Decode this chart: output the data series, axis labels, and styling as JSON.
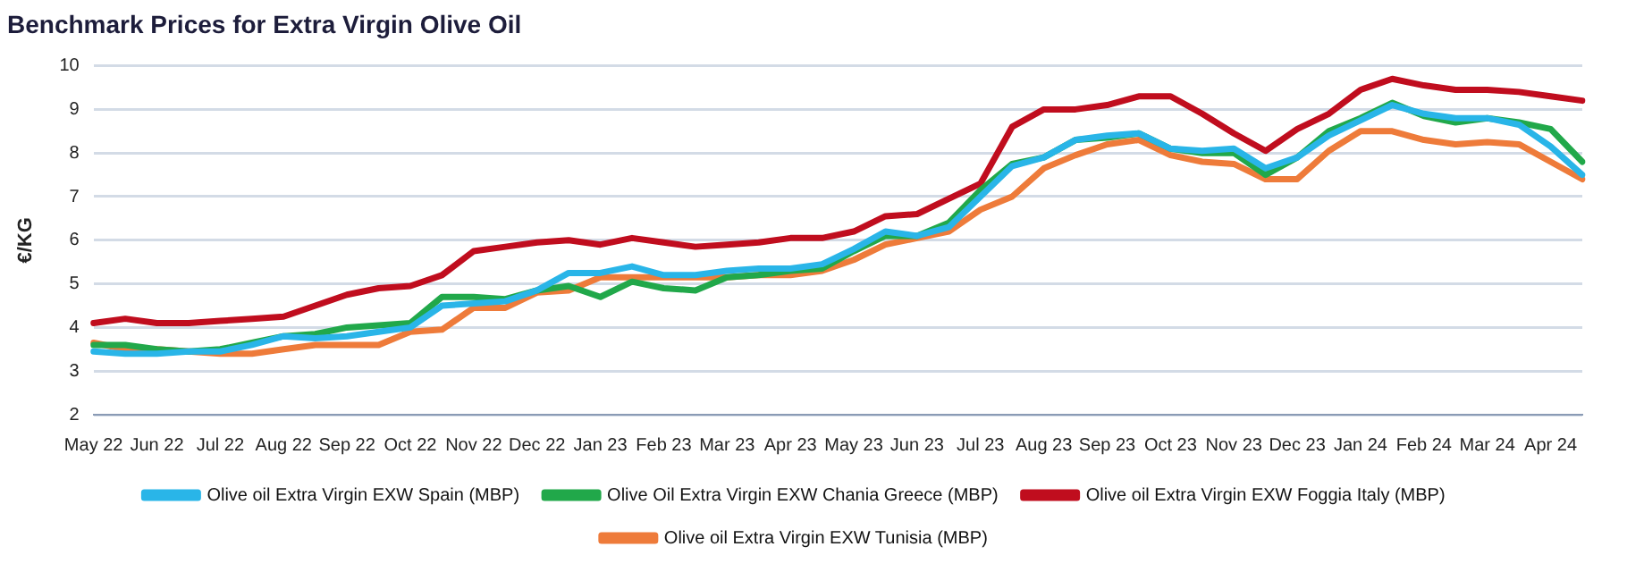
{
  "chart_data": {
    "type": "line",
    "title": "Benchmark Prices for Extra Virgin Olive Oil",
    "ylabel": "€/KG",
    "categories": [
      "May 22",
      null,
      "Jun 22",
      null,
      "Jul 22",
      null,
      "Aug 22",
      null,
      "Sep 22",
      null,
      "Oct 22",
      null,
      "Nov 22",
      null,
      "Dec 22",
      null,
      "Jan 23",
      null,
      "Feb 23",
      null,
      "Mar 23",
      null,
      "Apr 23",
      null,
      "May 23",
      null,
      "Jun 23",
      null,
      "Jul 23",
      null,
      "Aug 23",
      null,
      "Sep 23",
      null,
      "Oct 23",
      null,
      "Nov 23",
      null,
      "Dec 23",
      null,
      "Jan 24",
      null,
      "Feb 24",
      null,
      "Mar 24",
      null,
      "Apr 24",
      null
    ],
    "series": [
      {
        "name": "Olive oil Extra Virgin EXW Spain (MBP)",
        "color": "#29b5e8",
        "values": [
          3.45,
          3.4,
          3.4,
          3.45,
          3.45,
          3.6,
          3.8,
          3.75,
          3.8,
          3.9,
          4.0,
          4.5,
          4.55,
          4.6,
          4.85,
          5.25,
          5.25,
          5.4,
          5.2,
          5.2,
          5.3,
          5.35,
          5.35,
          5.45,
          5.8,
          6.2,
          6.1,
          6.3,
          7.0,
          7.7,
          7.9,
          8.3,
          8.4,
          8.45,
          8.1,
          8.05,
          8.1,
          7.65,
          7.9,
          8.4,
          8.75,
          9.1,
          8.9,
          8.8,
          8.8,
          8.65,
          8.15,
          7.5
        ]
      },
      {
        "name": "Olive Oil Extra Virgin EXW Chania Greece (MBP)",
        "color": "#21a84a",
        "values": [
          3.6,
          3.6,
          3.5,
          3.45,
          3.5,
          3.65,
          3.8,
          3.85,
          4.0,
          4.05,
          4.1,
          4.7,
          4.7,
          4.65,
          4.85,
          4.95,
          4.7,
          5.05,
          4.9,
          4.85,
          5.15,
          5.2,
          5.3,
          5.35,
          5.75,
          6.1,
          6.1,
          6.4,
          7.15,
          7.75,
          7.9,
          8.3,
          8.35,
          8.45,
          8.1,
          8.0,
          8.0,
          7.5,
          7.9,
          8.5,
          8.8,
          9.15,
          8.85,
          8.7,
          8.8,
          8.7,
          8.55,
          7.8
        ]
      },
      {
        "name": "Olive oil Extra Virgin EXW Foggia Italy (MBP)",
        "color": "#c00d1e",
        "values": [
          4.1,
          4.2,
          4.1,
          4.1,
          4.15,
          4.2,
          4.25,
          4.5,
          4.75,
          4.9,
          4.95,
          5.2,
          5.75,
          5.85,
          5.95,
          6.0,
          5.9,
          6.05,
          5.95,
          5.85,
          5.9,
          5.95,
          6.05,
          6.05,
          6.2,
          6.55,
          6.6,
          6.95,
          7.3,
          8.6,
          9.0,
          9.0,
          9.1,
          9.3,
          9.3,
          8.9,
          8.45,
          8.05,
          8.55,
          8.9,
          9.45,
          9.7,
          9.55,
          9.45,
          9.45,
          9.4,
          9.3,
          9.2
        ]
      },
      {
        "name": "Olive oil Extra Virgin EXW Tunisia (MBP)",
        "color": "#ee7b3a",
        "values": [
          3.65,
          3.5,
          3.5,
          3.45,
          3.4,
          3.4,
          3.5,
          3.6,
          3.6,
          3.6,
          3.9,
          3.95,
          4.45,
          4.45,
          4.8,
          4.85,
          5.15,
          5.15,
          5.15,
          5.15,
          5.15,
          5.2,
          5.2,
          5.3,
          5.55,
          5.9,
          6.05,
          6.2,
          6.7,
          7.0,
          7.65,
          7.95,
          8.2,
          8.3,
          7.95,
          7.8,
          7.75,
          7.4,
          7.4,
          8.05,
          8.5,
          8.5,
          8.3,
          8.2,
          8.25,
          8.2,
          7.8,
          7.4
        ]
      }
    ],
    "ylim": [
      2,
      10
    ],
    "yticks": [
      2,
      3,
      4,
      5,
      6,
      7,
      8,
      9,
      10
    ],
    "grid": "y",
    "legend": "bottom",
    "marker": "none",
    "line_style": "solid"
  }
}
